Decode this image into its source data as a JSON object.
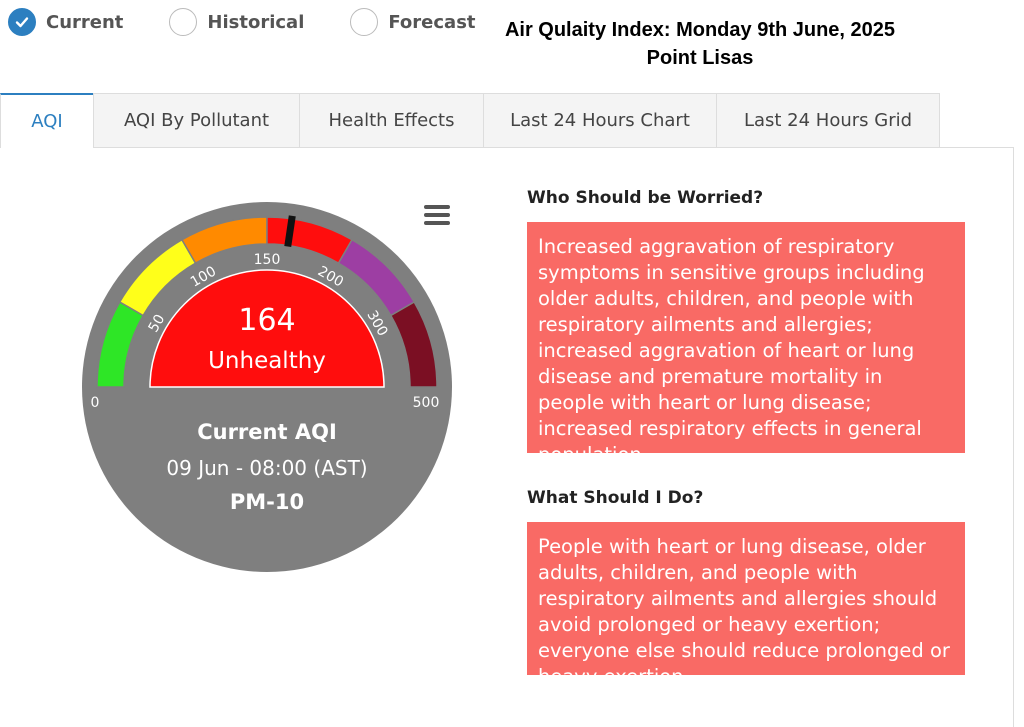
{
  "radios": [
    {
      "label": "Current",
      "active": true
    },
    {
      "label": "Historical",
      "active": false
    },
    {
      "label": "Forecast",
      "active": false
    }
  ],
  "title": {
    "line1": "Air Qulaity Index: Monday 9th June, 2025",
    "line2": "Point Lisas"
  },
  "tabs": [
    {
      "label": "AQI",
      "active": true
    },
    {
      "label": "AQI By Pollutant",
      "active": false
    },
    {
      "label": "Health Effects",
      "active": false
    },
    {
      "label": "Last 24 Hours Chart",
      "active": false
    },
    {
      "label": "Last 24 Hours Grid",
      "active": false
    }
  ],
  "gauge": {
    "value": "164",
    "category": "Unhealthy",
    "label": "Current AQI",
    "timestamp": "09 Jun - 08:00 (AST)",
    "pollutant": "PM-10",
    "needle_value": 164,
    "min": 0,
    "max": 500,
    "tick_labels": [
      "0",
      "50",
      "100",
      "150",
      "200",
      "300",
      "500"
    ],
    "colors": {
      "good": "#2ee626",
      "moderate": "#ffff1a",
      "usg": "#ff8a00",
      "unhealthy": "#ff0d0d",
      "very_unhealthy": "#9d3ea3",
      "hazardous": "#7b0f23",
      "dial": "#7f7f7f"
    }
  },
  "worried": {
    "title": "Who Should be Worried?",
    "text": "Increased aggravation of respiratory symptoms in sensitive groups including older adults, children, and people with respiratory ailments and allergies; increased aggravation of heart or lung disease and premature mortality in people with heart or lung disease; increased respiratory effects in general population"
  },
  "todo": {
    "title": "What Should I Do?",
    "text": "People with heart or lung disease, older adults, children, and people with respiratory ailments and allergies should avoid prolonged or heavy exertion; everyone else should reduce prolonged or heavy exertion"
  },
  "icons": {
    "check": "check-icon",
    "menu": "hamburger-menu-icon"
  },
  "accent_color": "#2c7fc0",
  "info_box_color": "#f96a65"
}
